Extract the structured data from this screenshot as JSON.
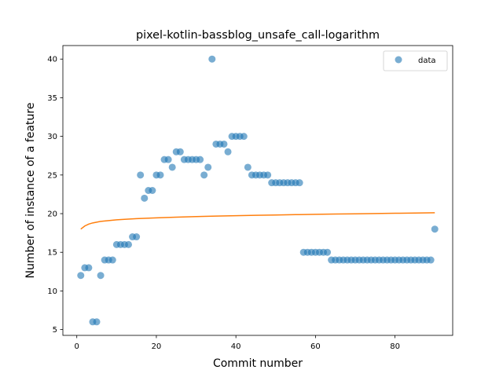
{
  "chart_data": {
    "type": "scatter",
    "title": "pixel-kotlin-bassblog_unsafe_call-logarithm",
    "xlabel": "Commit number",
    "ylabel": "Number of instance of a feature",
    "xlim": [
      -3.5,
      94.5
    ],
    "ylim": [
      4.25,
      41.75
    ],
    "xticks": [
      0,
      20,
      40,
      60,
      80
    ],
    "yticks": [
      5,
      10,
      15,
      20,
      25,
      30,
      35,
      40
    ],
    "grid": false,
    "legend_position": "top-right",
    "series": [
      {
        "name": "data",
        "kind": "scatter",
        "color": "#1f77b4",
        "alpha": 0.6,
        "x": [
          1,
          2,
          3,
          4,
          5,
          6,
          7,
          8,
          9,
          10,
          11,
          12,
          13,
          14,
          15,
          16,
          17,
          18,
          19,
          20,
          21,
          22,
          23,
          24,
          25,
          26,
          27,
          28,
          29,
          30,
          31,
          32,
          33,
          34,
          35,
          36,
          37,
          38,
          39,
          40,
          41,
          42,
          43,
          44,
          45,
          46,
          47,
          48,
          49,
          50,
          51,
          52,
          53,
          54,
          55,
          56,
          57,
          58,
          59,
          60,
          61,
          62,
          63,
          64,
          65,
          66,
          67,
          68,
          69,
          70,
          71,
          72,
          73,
          74,
          75,
          76,
          77,
          78,
          79,
          80,
          81,
          82,
          83,
          84,
          85,
          86,
          87,
          88,
          89,
          90
        ],
        "y": [
          12,
          13,
          13,
          6,
          6,
          12,
          14,
          14,
          14,
          16,
          16,
          16,
          16,
          17,
          17,
          25,
          22,
          23,
          23,
          25,
          25,
          27,
          27,
          26,
          28,
          28,
          27,
          27,
          27,
          27,
          27,
          25,
          26,
          40,
          29,
          29,
          29,
          28,
          30,
          30,
          30,
          30,
          26,
          25,
          25,
          25,
          25,
          25,
          24,
          24,
          24,
          24,
          24,
          24,
          24,
          24,
          15,
          15,
          15,
          15,
          15,
          15,
          15,
          14,
          14,
          14,
          14,
          14,
          14,
          14,
          14,
          14,
          14,
          14,
          14,
          14,
          14,
          14,
          14,
          14,
          14,
          14,
          14,
          14,
          14,
          14,
          14,
          14,
          14,
          18
        ]
      },
      {
        "name": "",
        "kind": "line",
        "color": "#ff7f0e",
        "x": [
          1,
          2,
          3,
          4,
          5,
          6,
          8,
          10,
          12,
          15,
          20,
          25,
          30,
          35,
          40,
          45,
          50,
          55,
          60,
          65,
          70,
          75,
          80,
          85,
          90
        ],
        "y": [
          18.0,
          18.4,
          18.65,
          18.8,
          18.9,
          19.0,
          19.1,
          19.2,
          19.27,
          19.35,
          19.45,
          19.55,
          19.62,
          19.68,
          19.74,
          19.79,
          19.83,
          19.87,
          19.91,
          19.95,
          19.98,
          20.02,
          20.05,
          20.08,
          20.12
        ]
      }
    ]
  }
}
